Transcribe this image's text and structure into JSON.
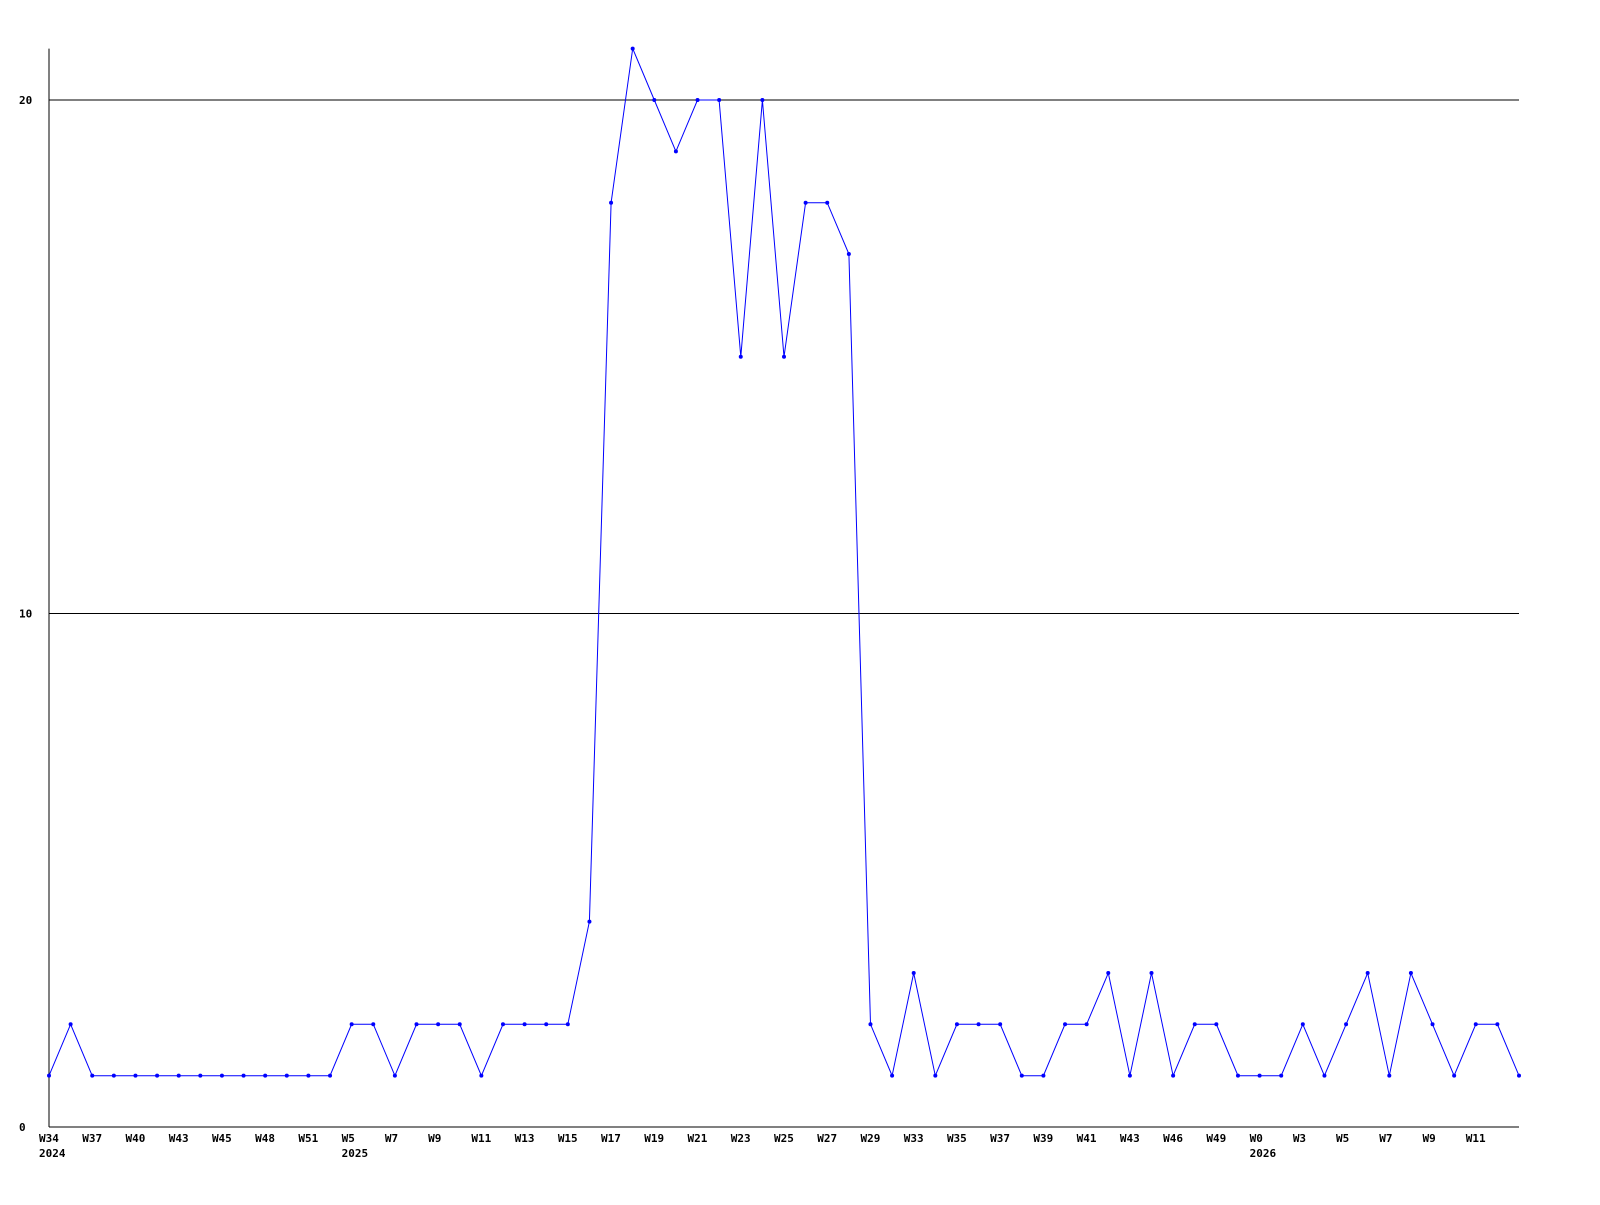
{
  "chart_data": {
    "type": "line",
    "title": "",
    "xlabel": "",
    "ylabel": "",
    "ylim": [
      0,
      21
    ],
    "yticks": [
      0,
      10,
      20
    ],
    "grid": "horizontal at y ticks",
    "line_color": "#0000ff",
    "x_tick_labels": [
      "W34",
      "W37",
      "W40",
      "W43",
      "W45",
      "W48",
      "W51",
      "W5",
      "W7",
      "W9",
      "W11",
      "W13",
      "W15",
      "W17",
      "W19",
      "W21",
      "W23",
      "W25",
      "W27",
      "W29",
      "W33",
      "W35",
      "W37",
      "W39",
      "W41",
      "W43",
      "W46",
      "W49",
      "W0",
      "W3",
      "W5",
      "W7",
      "W9",
      "W11"
    ],
    "year_labels": [
      {
        "label": "2024",
        "at_tick": 0
      },
      {
        "label": "2025",
        "at_tick": 7
      },
      {
        "label": "2026",
        "at_tick": 28
      }
    ],
    "series": [
      {
        "values": [
          1,
          2,
          1,
          1,
          1,
          1,
          1,
          1,
          1,
          1,
          1,
          1,
          1,
          1,
          2,
          2,
          1,
          2,
          2,
          2,
          1,
          2,
          2,
          2,
          2,
          4,
          18,
          21,
          20,
          19,
          20,
          20,
          15,
          20,
          15,
          18,
          18,
          17,
          2,
          1,
          3,
          1,
          2,
          2,
          2,
          1,
          1,
          2,
          2,
          3,
          1,
          3,
          1,
          2,
          2,
          1,
          1,
          1,
          2,
          1,
          2,
          3,
          1,
          3,
          2,
          1,
          2,
          2,
          1
        ]
      }
    ]
  }
}
